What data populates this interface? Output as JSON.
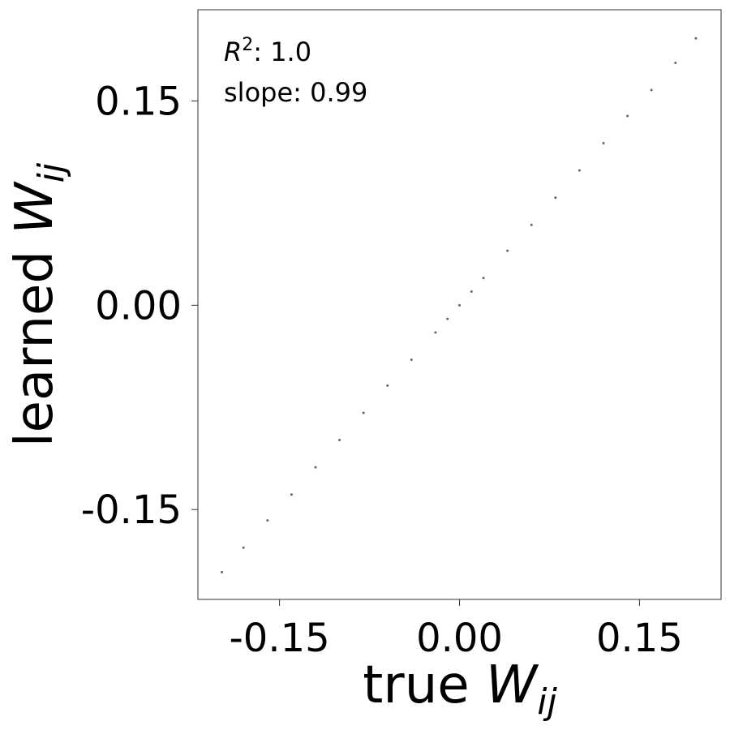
{
  "chart_data": {
    "type": "scatter",
    "annotations": [
      {
        "symbol": "R",
        "superscript": "2",
        "text": ": 1.0"
      },
      {
        "text": "slope: 0.99"
      }
    ],
    "xlabel": {
      "text": "true",
      "symbol": "W",
      "subscript": "ij"
    },
    "ylabel": {
      "text": "learned",
      "symbol": "W",
      "subscript": "ij"
    },
    "color": "#000000",
    "x": [
      -0.198,
      -0.18,
      -0.16,
      -0.14,
      -0.12,
      -0.1,
      -0.08,
      -0.06,
      -0.04,
      -0.02,
      -0.01,
      0,
      0.01,
      0.02,
      0.04,
      0.06,
      0.08,
      0.1,
      0.12,
      0.14,
      0.16,
      0.18,
      0.197
    ],
    "values": [
      -0.196,
      -0.178,
      -0.158,
      -0.139,
      -0.119,
      -0.099,
      -0.079,
      -0.059,
      -0.04,
      -0.02,
      -0.01,
      0,
      0.01,
      0.02,
      0.04,
      0.059,
      0.079,
      0.099,
      0.119,
      0.139,
      0.158,
      0.178,
      0.196
    ],
    "xlim": [
      -0.218,
      0.218
    ],
    "ylim": [
      -0.216,
      0.217
    ],
    "xticks": [
      {
        "value": -0.15,
        "label": "-0.15"
      },
      {
        "value": 0,
        "label": "0.00"
      },
      {
        "value": 0.15,
        "label": "0.15"
      }
    ],
    "yticks": [
      {
        "value": -0.15,
        "label": "-0.15"
      },
      {
        "value": 0,
        "label": "0.00"
      },
      {
        "value": 0.15,
        "label": "0.15"
      }
    ]
  }
}
